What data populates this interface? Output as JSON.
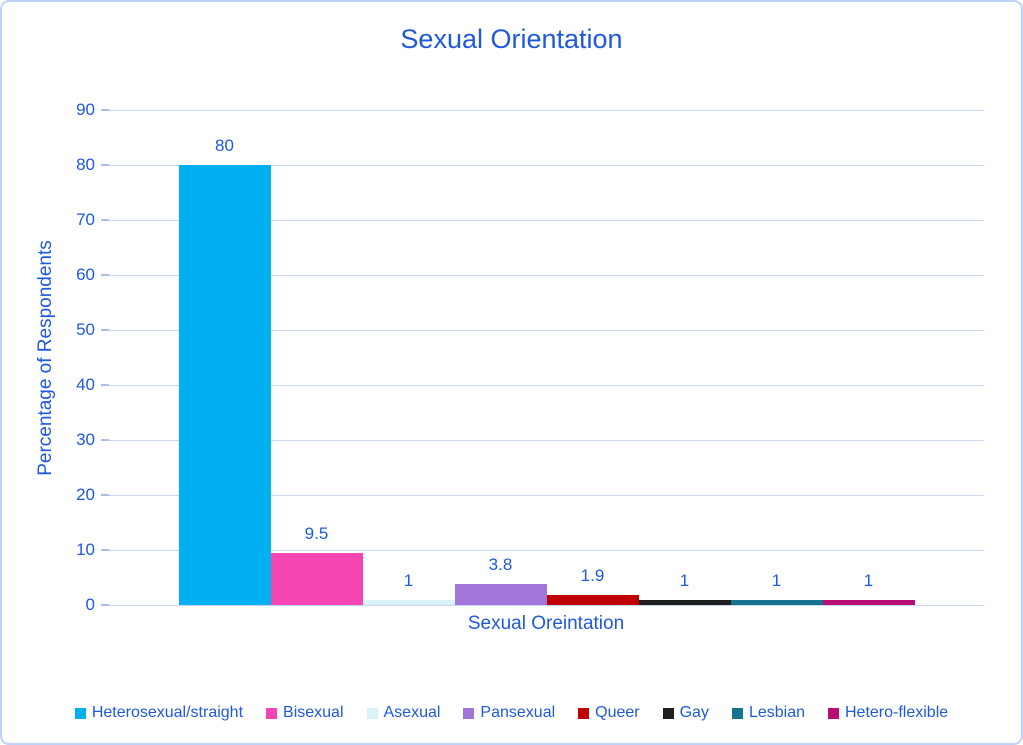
{
  "chart_data": {
    "type": "bar",
    "title": "Sexual Orientation",
    "xlabel": "Sexual Oreintation",
    "ylabel": "Percentage of Respondents",
    "ylim": [
      0,
      90
    ],
    "y_tick_step": 10,
    "y_ticks": [
      0,
      10,
      20,
      30,
      40,
      50,
      60,
      70,
      80,
      90
    ],
    "grid": true,
    "legend_position": "bottom",
    "categories": [
      "Sexual Orientation"
    ],
    "series": [
      {
        "name": "Heterosexual/straight",
        "value": 80,
        "data_label": "80",
        "color": "#00B0F0"
      },
      {
        "name": "Bisexual",
        "value": 9.5,
        "data_label": "9.5",
        "color": "#F445B2"
      },
      {
        "name": "Asexual",
        "value": 1,
        "data_label": "1",
        "color": "#D9F2F8"
      },
      {
        "name": "Pansexual",
        "value": 3.8,
        "data_label": "3.8",
        "color": "#A276D8"
      },
      {
        "name": "Queer",
        "value": 1.9,
        "data_label": "1.9",
        "color": "#C00000"
      },
      {
        "name": "Gay",
        "value": 1,
        "data_label": "1",
        "color": "#1F1F1F"
      },
      {
        "name": "Lesbian",
        "value": 1,
        "data_label": "1",
        "color": "#16748F"
      },
      {
        "name": "Hetero-flexible",
        "value": 1,
        "data_label": "1",
        "color": "#B80E72"
      }
    ],
    "style": {
      "text_color": "#1E59DE",
      "gridline_color": "#C9D7F3",
      "tick_color": "#A9BEE9",
      "chart_border_color": "#BFD2F7",
      "background_color": "#FFFFFF"
    }
  }
}
